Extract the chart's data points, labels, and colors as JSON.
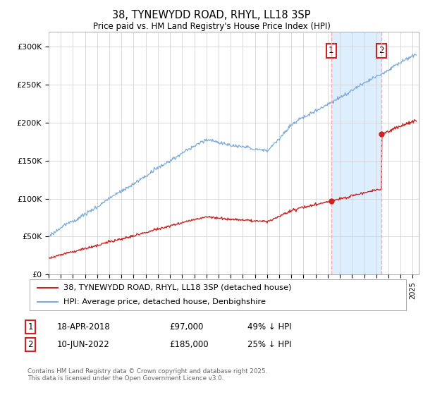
{
  "title": "38, TYNEWYDD ROAD, RHYL, LL18 3SP",
  "subtitle": "Price paid vs. HM Land Registry's House Price Index (HPI)",
  "ylim": [
    0,
    320000
  ],
  "xlim_start": 1995.0,
  "xlim_end": 2025.5,
  "background_color": "#ffffff",
  "grid_color": "#cccccc",
  "hpi_color": "#7aabdc",
  "price_color": "#cc2222",
  "dashed_vline_color": "#ffaaaa",
  "shade_color": "#ddeeff",
  "annotation_box_color": "#cc2222",
  "sale1_date": 2018.29,
  "sale1_price": 97000,
  "sale2_date": 2022.44,
  "sale2_price": 185000,
  "legend_line1": "38, TYNEWYDD ROAD, RHYL, LL18 3SP (detached house)",
  "legend_line2": "HPI: Average price, detached house, Denbighshire",
  "table_row1": [
    "1",
    "18-APR-2018",
    "£97,000",
    "49% ↓ HPI"
  ],
  "table_row2": [
    "2",
    "10-JUN-2022",
    "£185,000",
    "25% ↓ HPI"
  ],
  "footnote": "Contains HM Land Registry data © Crown copyright and database right 2025.\nThis data is licensed under the Open Government Licence v3.0."
}
